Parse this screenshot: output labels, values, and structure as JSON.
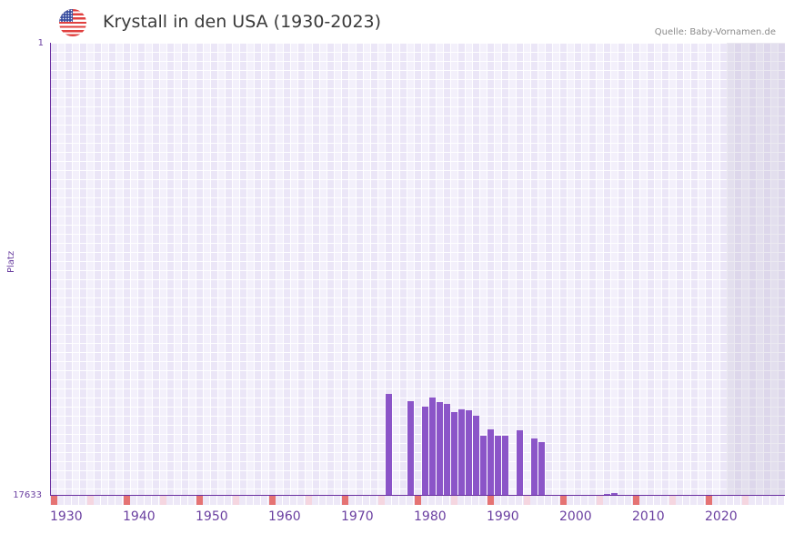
{
  "header": {
    "title": "Krystall in den USA (1930-2023)",
    "source": "Quelle: Baby-Vornamen.de",
    "flag_icon": "us-flag-icon"
  },
  "colors": {
    "bar": "#8b55c8",
    "axis": "#6a2fa0",
    "decade_marker": "#e57373",
    "half_decade_marker": "#f5d6e0",
    "plot_bg": "#f3f0fb"
  },
  "chart_data": {
    "type": "bar",
    "title": "Krystall in den USA (1930-2023)",
    "xlabel": "",
    "ylabel": "Platz",
    "y_inverted": true,
    "ylim": [
      1,
      17633
    ],
    "xlim": [
      1930,
      2029
    ],
    "y_ticks": [
      "1",
      "17633"
    ],
    "x_ticks": [
      "1930",
      "1940",
      "1950",
      "1960",
      "1970",
      "1980",
      "1990",
      "2000",
      "2010",
      "2020"
    ],
    "grid": true,
    "shaded_future_from": 2023,
    "categories": [
      1976,
      1979,
      1981,
      1982,
      1983,
      1984,
      1985,
      1986,
      1987,
      1988,
      1989,
      1990,
      1991,
      1992,
      1994,
      1996,
      1997,
      2006,
      2007
    ],
    "values": [
      13667,
      13950,
      14163,
      13808,
      13985,
      14056,
      14375,
      14269,
      14304,
      14517,
      15296,
      15048,
      15296,
      15296,
      15083,
      15402,
      15543,
      17562,
      17527
    ]
  }
}
